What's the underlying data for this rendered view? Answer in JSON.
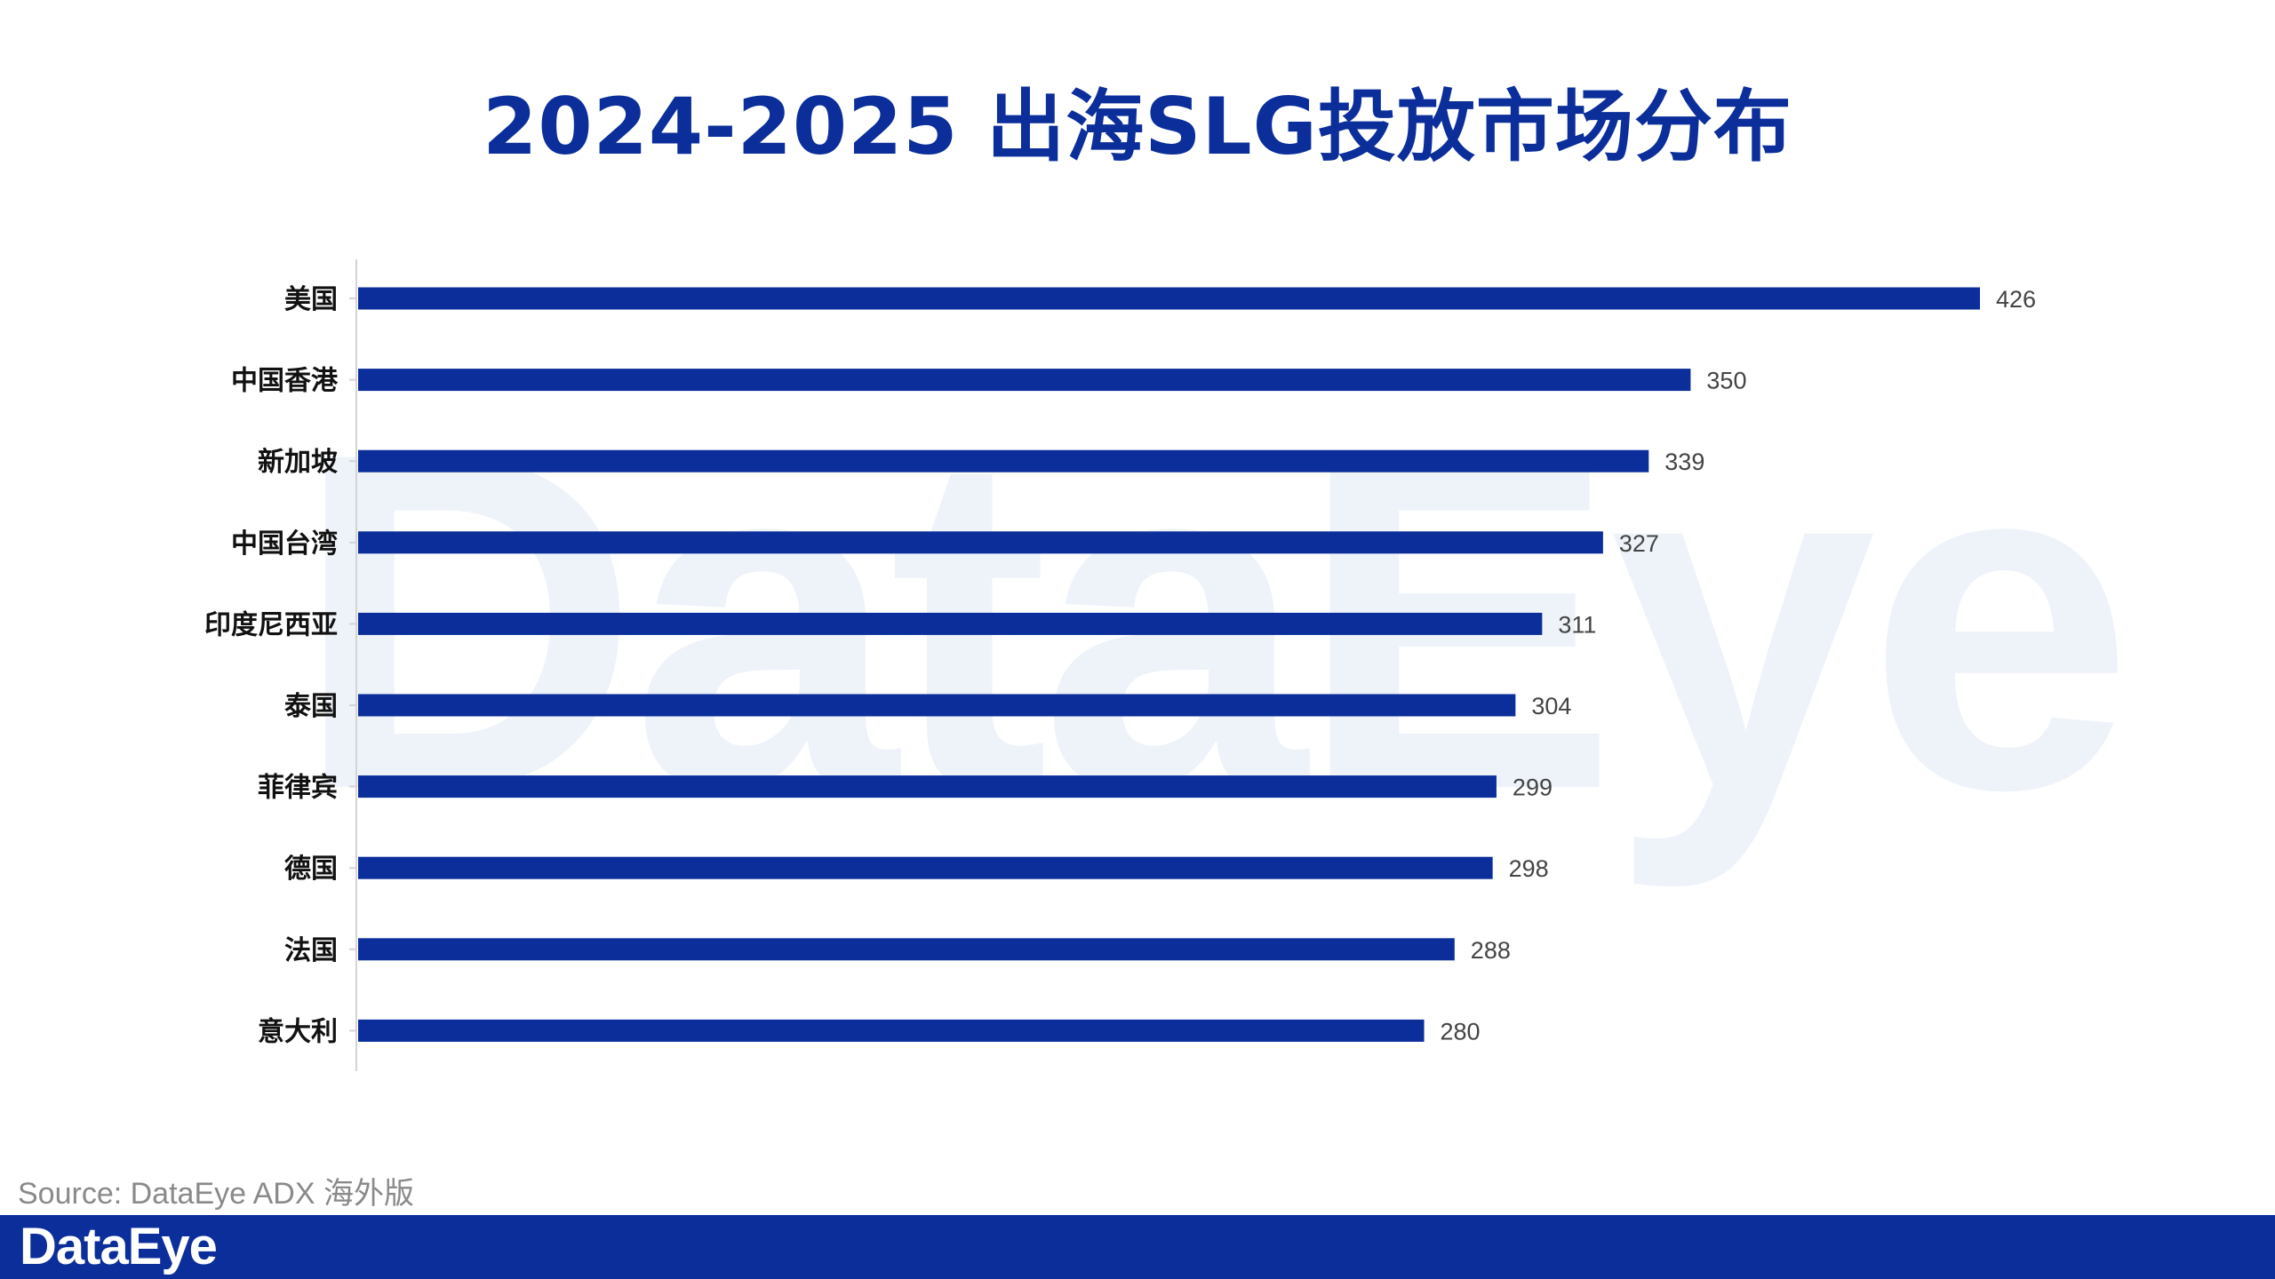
{
  "header": {
    "title": "2024-2025 出海SLG投放市场分布"
  },
  "watermark": {
    "text": "DataEye"
  },
  "source": {
    "text": "Source: DataEye ADX 海外版"
  },
  "footer": {
    "brand": "DataEye"
  },
  "colors": {
    "bar": "#0b2e9a",
    "title": "#0b2e9a",
    "footer": "#0b2e9a",
    "watermark": "#eef3fa"
  },
  "chart_data": {
    "type": "bar",
    "orientation": "horizontal",
    "title": "2024-2025 出海SLG投放市场分布",
    "categories": [
      "美国",
      "中国香港",
      "新加坡",
      "中国台湾",
      "印度尼西亚",
      "泰国",
      "菲律宾",
      "德国",
      "法国",
      "意大利"
    ],
    "values": [
      426,
      350,
      339,
      327,
      311,
      304,
      299,
      298,
      288,
      280
    ],
    "xlim": [
      0,
      426
    ],
    "grid": false,
    "legend": "none",
    "data_labels": true
  }
}
